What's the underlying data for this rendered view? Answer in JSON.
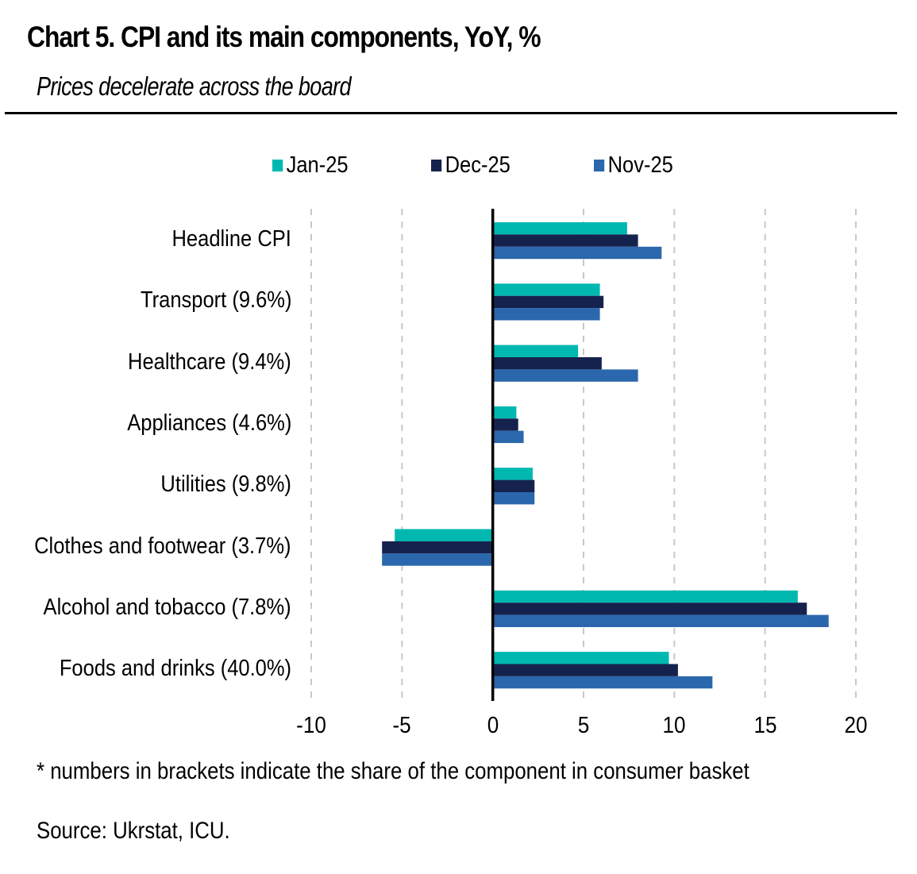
{
  "header": {
    "title": "Chart 5. CPI and its main components, YoY, %",
    "subtitle": "Prices decelerate across the board"
  },
  "footer": {
    "footnote": "* numbers in brackets indicate the share of the component in consumer basket",
    "source": "Source: Ukrstat, ICU."
  },
  "chart_data": {
    "type": "bar",
    "orientation": "horizontal",
    "title": "Chart 5. CPI and its main components, YoY, %",
    "subtitle": "Prices decelerate across the board",
    "xlabel": "",
    "ylabel": "",
    "xlim": [
      -10,
      20
    ],
    "xticks": [
      -10,
      -5,
      0,
      5,
      10,
      15,
      20
    ],
    "xtick_labels": [
      "-10",
      "-5",
      "0",
      "5",
      "10",
      "15",
      "20"
    ],
    "grid": "vertical dashed",
    "legend_position": "top-center",
    "categories": [
      "Headline CPI",
      "Transport (9.6%)",
      "Healthcare (9.4%)",
      "Appliances (4.6%)",
      "Utilities (9.8%)",
      "Clothes and footwear (3.7%)",
      "Alcohol and tobacco (7.8%)",
      "Foods and drinks (40.0%)"
    ],
    "series": [
      {
        "name": "Jan-25",
        "color": "#00B8B0",
        "values": [
          7.4,
          5.9,
          4.7,
          1.3,
          2.2,
          -5.4,
          16.8,
          9.7
        ]
      },
      {
        "name": "Dec-25",
        "color": "#16224E",
        "values": [
          8.0,
          6.1,
          6.0,
          1.4,
          2.3,
          -6.1,
          17.3,
          10.2
        ]
      },
      {
        "name": "Nov-25",
        "color": "#2B67AC",
        "values": [
          9.3,
          5.9,
          8.0,
          1.7,
          2.3,
          -6.1,
          18.5,
          12.1
        ]
      }
    ]
  }
}
